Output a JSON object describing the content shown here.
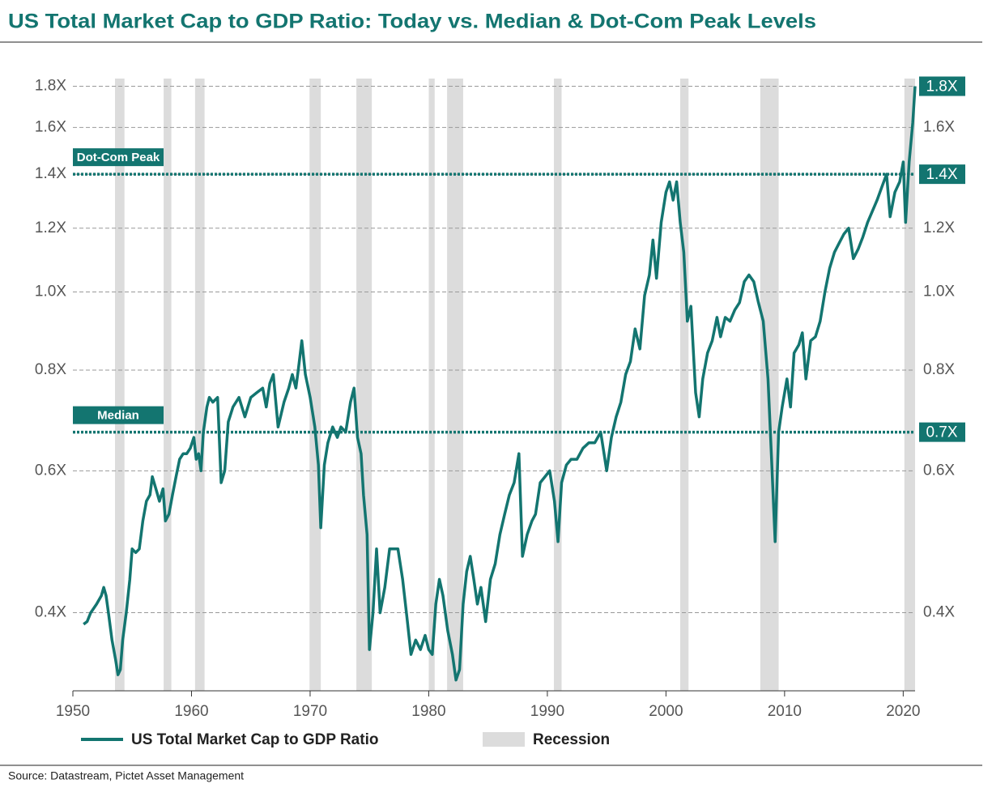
{
  "chart_data": {
    "type": "line",
    "title": "US Total Market Cap to GDP Ratio: Today vs. Median & Dot-Com Peak Levels",
    "source": "Source: Datastream, Pictet Asset Management",
    "log_y": true,
    "grid": true,
    "xlim": [
      1950,
      2021
    ],
    "xticks": [
      1950,
      1960,
      1970,
      1980,
      1990,
      2000,
      2010,
      2020
    ],
    "ylim": [
      0.32,
      1.84
    ],
    "yticks": [
      {
        "value": 0.4,
        "label": "0.4X"
      },
      {
        "value": 0.6,
        "label": "0.6X"
      },
      {
        "value": 0.8,
        "label": "0.8X"
      },
      {
        "value": 1.0,
        "label": "1.0X"
      },
      {
        "value": 1.2,
        "label": "1.2X"
      },
      {
        "value": 1.4,
        "label": "1.4X"
      },
      {
        "value": 1.6,
        "label": "1.6X"
      },
      {
        "value": 1.8,
        "label": "1.8X"
      }
    ],
    "y2ticks": [
      {
        "value": 0.4,
        "label": "0.4X"
      },
      {
        "value": 0.6,
        "label": "0.6X"
      },
      {
        "value": 0.8,
        "label": "0.8X"
      },
      {
        "value": 1.0,
        "label": "1.0X"
      },
      {
        "value": 1.2,
        "label": "1.2X"
      },
      {
        "value": 1.6,
        "label": "1.6X"
      }
    ],
    "reference_lines": [
      {
        "name": "Dot-Com Peak",
        "value": 1.4,
        "value_label": "1.4X"
      },
      {
        "name": "Median",
        "value": 0.67,
        "value_label": "0.7X"
      }
    ],
    "recessions": {
      "name": "Recession",
      "color": "#dcdcdc",
      "periods": [
        [
          1953.55,
          1954.35
        ],
        [
          1957.65,
          1958.3
        ],
        [
          1960.3,
          1961.1
        ],
        [
          1969.95,
          1970.9
        ],
        [
          1973.9,
          1975.2
        ],
        [
          1980.0,
          1980.5
        ],
        [
          1981.55,
          1982.9
        ],
        [
          1990.55,
          1991.2
        ],
        [
          2001.2,
          2001.9
        ],
        [
          2007.95,
          2009.5
        ],
        [
          2020.1,
          2021.0
        ]
      ]
    },
    "x": [
      1950.9,
      1951.2,
      1951.5,
      1952.0,
      1952.4,
      1952.6,
      1952.8,
      1953.0,
      1953.3,
      1953.6,
      1953.8,
      1954.0,
      1954.2,
      1954.5,
      1954.8,
      1955.0,
      1955.3,
      1955.6,
      1955.9,
      1956.2,
      1956.5,
      1956.7,
      1957.0,
      1957.3,
      1957.6,
      1957.8,
      1958.1,
      1958.4,
      1958.7,
      1959.0,
      1959.3,
      1959.6,
      1959.9,
      1960.2,
      1960.4,
      1960.6,
      1960.8,
      1961.0,
      1961.3,
      1961.5,
      1961.8,
      1962.2,
      1962.5,
      1962.8,
      1963.1,
      1963.5,
      1964.0,
      1964.5,
      1965.0,
      1965.5,
      1966.0,
      1966.3,
      1966.6,
      1966.9,
      1967.3,
      1967.8,
      1968.2,
      1968.5,
      1968.8,
      1969.0,
      1969.3,
      1969.6,
      1970.0,
      1970.4,
      1970.7,
      1970.9,
      1971.2,
      1971.5,
      1971.9,
      1972.3,
      1972.6,
      1973.0,
      1973.4,
      1973.7,
      1974.0,
      1974.3,
      1974.5,
      1974.8,
      1975.0,
      1975.3,
      1975.6,
      1975.9,
      1976.3,
      1976.7,
      1977.0,
      1977.4,
      1977.8,
      1978.2,
      1978.5,
      1978.9,
      1979.3,
      1979.7,
      1980.0,
      1980.3,
      1980.6,
      1980.9,
      1981.2,
      1981.6,
      1982.0,
      1982.3,
      1982.6,
      1982.9,
      1983.2,
      1983.5,
      1983.8,
      1984.1,
      1984.4,
      1984.8,
      1985.2,
      1985.6,
      1986.0,
      1986.4,
      1986.8,
      1987.2,
      1987.6,
      1987.9,
      1988.3,
      1988.7,
      1989.0,
      1989.4,
      1989.8,
      1990.2,
      1990.6,
      1990.9,
      1991.2,
      1991.6,
      1992.0,
      1992.5,
      1993.0,
      1993.5,
      1994.0,
      1994.5,
      1995.0,
      1995.4,
      1995.8,
      1996.2,
      1996.6,
      1997.0,
      1997.4,
      1997.8,
      1998.2,
      1998.6,
      1998.9,
      1999.2,
      1999.6,
      2000.0,
      2000.3,
      2000.6,
      2000.9,
      2001.2,
      2001.5,
      2001.8,
      2002.1,
      2002.5,
      2002.8,
      2003.1,
      2003.5,
      2003.9,
      2004.3,
      2004.6,
      2005.0,
      2005.4,
      2005.8,
      2006.2,
      2006.6,
      2007.0,
      2007.4,
      2007.8,
      2008.2,
      2008.6,
      2008.9,
      2009.2,
      2009.5,
      2009.8,
      2010.2,
      2010.5,
      2010.8,
      2011.2,
      2011.5,
      2011.8,
      2012.2,
      2012.6,
      2013.0,
      2013.4,
      2013.8,
      2014.2,
      2014.6,
      2015.0,
      2015.4,
      2015.8,
      2016.2,
      2016.6,
      2017.0,
      2017.4,
      2017.8,
      2018.2,
      2018.6,
      2018.9,
      2019.3,
      2019.7,
      2020.0,
      2020.2,
      2020.5,
      2020.8,
      2021.0
    ],
    "series": [
      {
        "name": "US Total Market Cap to GDP Ratio",
        "color": "#137570",
        "values": [
          0.387,
          0.39,
          0.4,
          0.41,
          0.42,
          0.43,
          0.42,
          0.4,
          0.37,
          0.35,
          0.335,
          0.34,
          0.37,
          0.4,
          0.44,
          0.48,
          0.475,
          0.48,
          0.52,
          0.55,
          0.56,
          0.59,
          0.57,
          0.55,
          0.57,
          0.52,
          0.53,
          0.56,
          0.59,
          0.62,
          0.63,
          0.63,
          0.64,
          0.66,
          0.62,
          0.63,
          0.6,
          0.67,
          0.72,
          0.74,
          0.73,
          0.74,
          0.58,
          0.6,
          0.69,
          0.72,
          0.74,
          0.7,
          0.74,
          0.75,
          0.76,
          0.72,
          0.77,
          0.79,
          0.68,
          0.73,
          0.76,
          0.79,
          0.76,
          0.8,
          0.87,
          0.79,
          0.74,
          0.68,
          0.61,
          0.51,
          0.61,
          0.65,
          0.68,
          0.66,
          0.68,
          0.67,
          0.73,
          0.76,
          0.66,
          0.63,
          0.56,
          0.5,
          0.36,
          0.4,
          0.48,
          0.4,
          0.43,
          0.48,
          0.48,
          0.48,
          0.44,
          0.39,
          0.355,
          0.37,
          0.36,
          0.375,
          0.36,
          0.355,
          0.41,
          0.44,
          0.42,
          0.38,
          0.355,
          0.33,
          0.34,
          0.41,
          0.45,
          0.47,
          0.44,
          0.41,
          0.43,
          0.39,
          0.44,
          0.46,
          0.5,
          0.53,
          0.56,
          0.58,
          0.63,
          0.47,
          0.5,
          0.52,
          0.53,
          0.58,
          0.59,
          0.6,
          0.55,
          0.49,
          0.58,
          0.61,
          0.62,
          0.62,
          0.64,
          0.65,
          0.65,
          0.67,
          0.6,
          0.66,
          0.7,
          0.73,
          0.79,
          0.82,
          0.9,
          0.85,
          0.99,
          1.05,
          1.16,
          1.04,
          1.22,
          1.33,
          1.37,
          1.3,
          1.37,
          1.22,
          1.12,
          0.92,
          0.96,
          0.75,
          0.7,
          0.78,
          0.84,
          0.87,
          0.93,
          0.88,
          0.93,
          0.92,
          0.95,
          0.97,
          1.03,
          1.05,
          1.03,
          0.97,
          0.92,
          0.78,
          0.62,
          0.49,
          0.67,
          0.72,
          0.78,
          0.72,
          0.84,
          0.86,
          0.89,
          0.78,
          0.87,
          0.88,
          0.92,
          1.0,
          1.07,
          1.12,
          1.15,
          1.18,
          1.2,
          1.1,
          1.13,
          1.17,
          1.22,
          1.26,
          1.3,
          1.35,
          1.4,
          1.24,
          1.33,
          1.37,
          1.45,
          1.22,
          1.45,
          1.62,
          1.8
        ]
      }
    ],
    "end_label": "1.8X"
  }
}
